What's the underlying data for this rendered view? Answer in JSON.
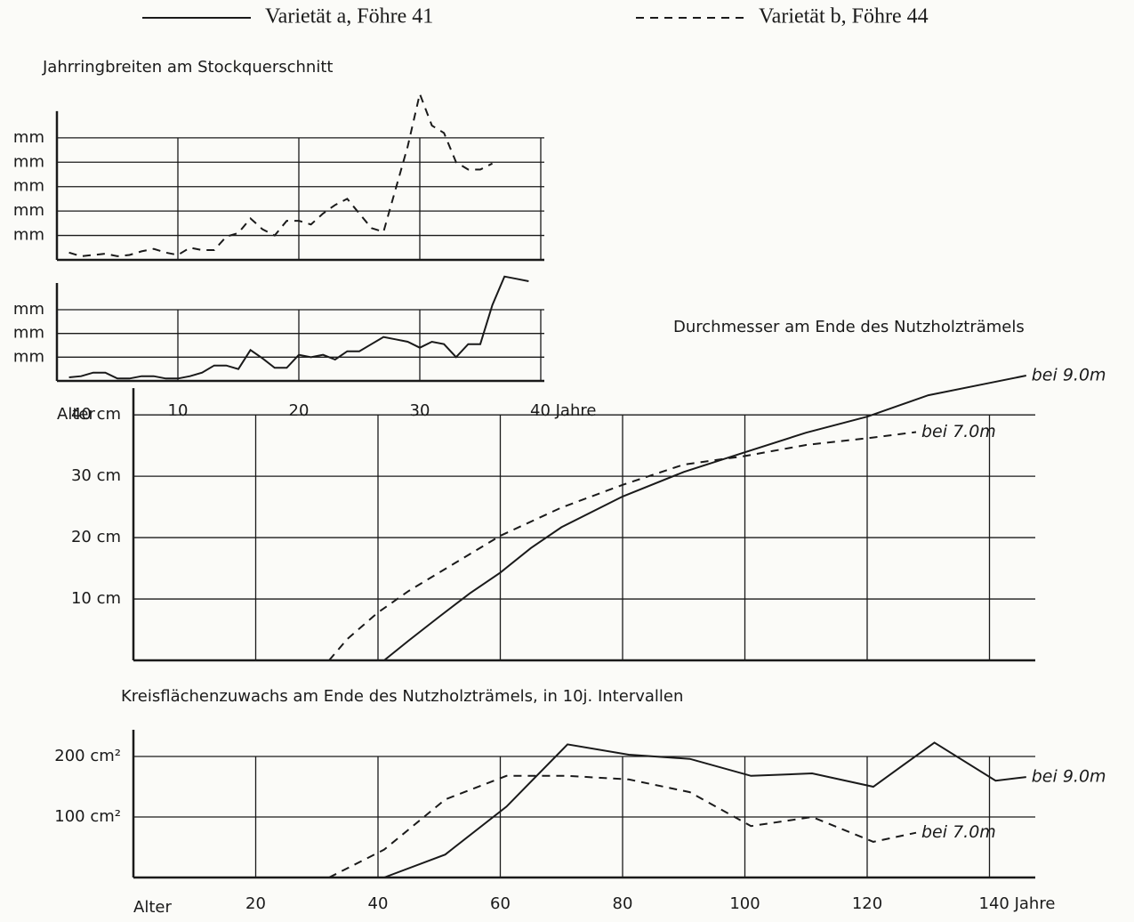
{
  "legend": [
    {
      "name": "Varietät a, Föhre 41",
      "style": "solid"
    },
    {
      "name": "Varietät b, Föhre 44",
      "style": "dashed"
    }
  ],
  "chart_data": [
    {
      "type": "line",
      "x_label": "Alter",
      "xlim": [
        0,
        40
      ],
      "xticks": [
        10,
        20,
        30,
        {
          "value": 40,
          "label": "40 Jahre"
        }
      ],
      "panels": [
        {
          "title": "Jahrringbreiten am Stockquerschnitt",
          "ylim": [
            0,
            7
          ],
          "yticks": [
            {
              "value": 1,
              "label": "mm"
            },
            {
              "value": 2,
              "label": "mm"
            },
            {
              "value": 3,
              "label": "mm"
            },
            {
              "value": 4,
              "label": "mm"
            },
            {
              "value": 5,
              "label": "mm"
            }
          ],
          "series": [
            {
              "style": "dashed",
              "color": "#1a1a1a",
              "x": [
                1,
                2,
                3,
                4,
                5,
                6,
                7,
                8,
                9,
                10,
                11,
                12,
                13,
                14,
                15,
                16,
                17,
                18,
                19,
                20,
                21,
                22,
                23,
                24,
                25,
                26,
                27,
                28,
                29,
                30,
                31,
                32,
                33,
                34,
                35,
                36
              ],
              "values": [
                0.3,
                0.15,
                0.2,
                0.25,
                0.15,
                0.2,
                0.35,
                0.45,
                0.3,
                0.2,
                0.5,
                0.4,
                0.4,
                0.95,
                1.1,
                1.7,
                1.25,
                1.0,
                1.6,
                1.6,
                1.45,
                1.9,
                2.25,
                2.5,
                1.9,
                1.3,
                1.15,
                2.9,
                4.65,
                6.8,
                5.5,
                5.2,
                4.0,
                3.7,
                3.7,
                3.95
              ]
            }
          ]
        },
        {
          "ylim": [
            0,
            4.5
          ],
          "yticks": [
            {
              "value": 1,
              "label": "mm"
            },
            {
              "value": 2,
              "label": "mm"
            },
            {
              "value": 3,
              "label": "mm"
            }
          ],
          "series": [
            {
              "style": "solid",
              "color": "#1a1a1a",
              "x": [
                1,
                2,
                3,
                4,
                5,
                6,
                7,
                8,
                9,
                10,
                11,
                12,
                13,
                14,
                15,
                16,
                17,
                18,
                19,
                20,
                21,
                22,
                23,
                24,
                25,
                26,
                27,
                28,
                29,
                30,
                31,
                32,
                33,
                34,
                35,
                36,
                37,
                38,
                39
              ],
              "values": [
                0.15,
                0.2,
                0.35,
                0.35,
                0.1,
                0.1,
                0.2,
                0.2,
                0.1,
                0.1,
                0.2,
                0.35,
                0.65,
                0.65,
                0.5,
                1.3,
                0.95,
                0.55,
                0.55,
                1.1,
                1.0,
                1.1,
                0.9,
                1.25,
                1.25,
                1.55,
                1.85,
                1.75,
                1.65,
                1.4,
                1.65,
                1.55,
                1.0,
                1.55,
                1.55,
                3.2,
                4.4,
                4.3,
                4.2
              ]
            }
          ]
        }
      ]
    },
    {
      "type": "line",
      "x_label": "Alter",
      "xlim": [
        0,
        148
      ],
      "xticks": [
        20,
        40,
        60,
        80,
        100,
        120,
        {
          "value": 140,
          "label": "140 Jahre"
        }
      ],
      "panels": [
        {
          "title": "Durchmesser am Ende des Nutzholzträmels",
          "ylim": [
            0,
            48
          ],
          "yticks": [
            {
              "value": 10,
              "label": "10 cm"
            },
            {
              "value": 20,
              "label": "20 cm"
            },
            {
              "value": 30,
              "label": "30 cm"
            },
            {
              "value": 40,
              "label": "40 cm"
            }
          ],
          "series": [
            {
              "name": "bei 9.0m",
              "style": "solid",
              "color": "#1a1a1a",
              "x": [
                41,
                45,
                50,
                55,
                60,
                65,
                70,
                80,
                90,
                100,
                110,
                120,
                130,
                140,
                146
              ],
              "values": [
                0,
                3.2,
                7.1,
                10.9,
                14.3,
                18.3,
                21.7,
                26.7,
                30.7,
                33.9,
                37.1,
                39.7,
                43.2,
                45.2,
                46.4
              ]
            },
            {
              "name": "bei 7.0m",
              "style": "dashed",
              "color": "#1a1a1a",
              "x": [
                32,
                35,
                40,
                45,
                50,
                60,
                70,
                80,
                90,
                100,
                110,
                120,
                128
              ],
              "values": [
                0,
                3.5,
                7.8,
                11.3,
                14.3,
                20.3,
                24.9,
                28.6,
                31.9,
                33.3,
                35.1,
                36.2,
                37.2
              ]
            }
          ]
        },
        {
          "title": "Kreisflächenzuwachs am Ende des Nutzholzträmels, in 10j. Intervallen",
          "ylim": [
            0,
            250
          ],
          "yticks": [
            {
              "value": 100,
              "label": "100 cm²"
            },
            {
              "value": 200,
              "label": "200 cm²"
            }
          ],
          "series": [
            {
              "name": "bei 9.0m",
              "style": "solid",
              "color": "#1a1a1a",
              "x": [
                41,
                51,
                61,
                71,
                81,
                91,
                101,
                111,
                121,
                131,
                141,
                146
              ],
              "values": [
                0,
                38,
                117,
                220,
                203,
                196,
                168,
                172,
                150,
                223,
                160,
                166
              ]
            },
            {
              "name": "bei 7.0m",
              "style": "dashed",
              "color": "#1a1a1a",
              "x": [
                32,
                41,
                51,
                61,
                71,
                81,
                91,
                101,
                111,
                121,
                128
              ],
              "values": [
                0,
                46,
                129,
                168,
                168,
                162,
                141,
                85,
                100,
                59,
                74
              ]
            }
          ]
        }
      ]
    }
  ]
}
